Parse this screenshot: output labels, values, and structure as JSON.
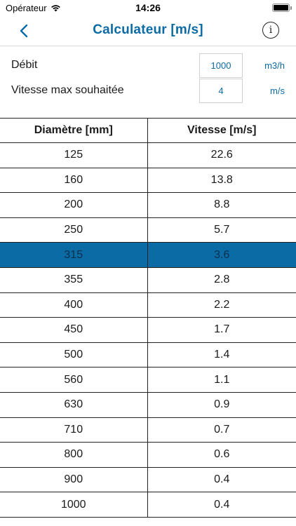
{
  "status_bar": {
    "carrier": "Opérateur",
    "time": "14:26"
  },
  "nav": {
    "title": "Calculateur [m/s]",
    "back_icon": "chevron-left-icon",
    "info_icon": "info-icon"
  },
  "form": {
    "debit": {
      "label": "Débit",
      "value": "1000",
      "unit": "m3/h"
    },
    "vitesse": {
      "label": "Vitesse max souhaitée",
      "value": "4",
      "unit": "m/s"
    }
  },
  "table": {
    "headers": [
      "Diamètre [mm]",
      "Vitesse [m/s]"
    ],
    "rows": [
      [
        "125",
        "22.6"
      ],
      [
        "160",
        "13.8"
      ],
      [
        "200",
        "8.8"
      ],
      [
        "250",
        "5.7"
      ],
      [
        "315",
        "3.6"
      ],
      [
        "355",
        "2.8"
      ],
      [
        "400",
        "2.2"
      ],
      [
        "450",
        "1.7"
      ],
      [
        "500",
        "1.4"
      ],
      [
        "560",
        "1.1"
      ],
      [
        "630",
        "0.9"
      ],
      [
        "710",
        "0.7"
      ],
      [
        "800",
        "0.6"
      ],
      [
        "900",
        "0.4"
      ],
      [
        "1000",
        "0.4"
      ]
    ],
    "selected_row_index": 4
  },
  "colors": {
    "accent": "#0b6ba5",
    "selected_row": "#0b6ba5"
  }
}
